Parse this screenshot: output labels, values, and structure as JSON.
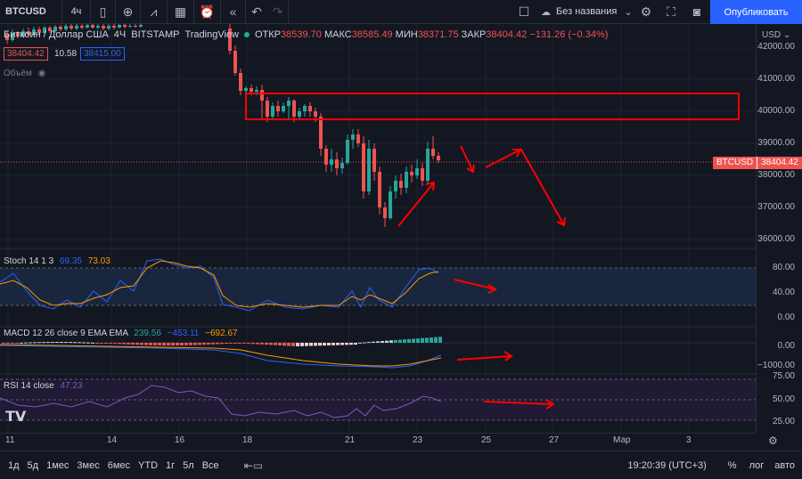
{
  "toolbar": {
    "symbol": "BTCUSD",
    "interval": "4ч",
    "layout_name": "Без названия",
    "publish_label": "Опубликовать"
  },
  "legend": {
    "title": "Биткоин / Доллар США",
    "interval": "4Ч",
    "exchange": "BITSTAMP",
    "source": "TradingView",
    "open_label": "ОТКР",
    "open": "38539.70",
    "high_label": "МАКС",
    "high": "38585.49",
    "low_label": "МИН",
    "low": "38371.75",
    "close_label": "ЗАКР",
    "close": "38404.42",
    "change": "−131.26 (−0.34%)",
    "bid": "38404.42",
    "spread": "10.58",
    "ask": "38415.00",
    "volume_label": "Объём"
  },
  "price_axis": {
    "currency": "USD",
    "ticks": [
      "42000.00",
      "41000.00",
      "40000.00",
      "39000.00",
      "38000.00",
      "37000.00",
      "36000.00"
    ],
    "symbol_badge": "BTCUSD",
    "last_price": "38404.42"
  },
  "stoch": {
    "label": "Stoch 14 1 3",
    "k": "69.35",
    "d": "73.03",
    "ticks": [
      "80.00",
      "40.00",
      "0.00"
    ]
  },
  "macd": {
    "label": "MACD 12 26 close 9 EMA EMA",
    "hist": "239.56",
    "macd": "−453.11",
    "signal": "−692.67",
    "ticks": [
      "0.00",
      "−1000.00"
    ]
  },
  "rsi": {
    "label": "RSI 14 close",
    "value": "47.23",
    "ticks": [
      "75.00",
      "50.00",
      "25.00"
    ]
  },
  "time_axis": {
    "labels": [
      "11",
      "14",
      "16",
      "18",
      "21",
      "23",
      "25",
      "27",
      "Мар",
      "3"
    ]
  },
  "bottom": {
    "ranges": [
      "1д",
      "5д",
      "1мес",
      "3мес",
      "6мес",
      "YTD",
      "1г",
      "5л",
      "Все"
    ],
    "clock": "19:20:39 (UTC+3)",
    "percent": "%",
    "log": "лог",
    "auto": "авто"
  },
  "colors": {
    "up": "#26a69a",
    "down": "#ef5350",
    "annotation": "#ff0000",
    "accent": "#2962ff"
  }
}
